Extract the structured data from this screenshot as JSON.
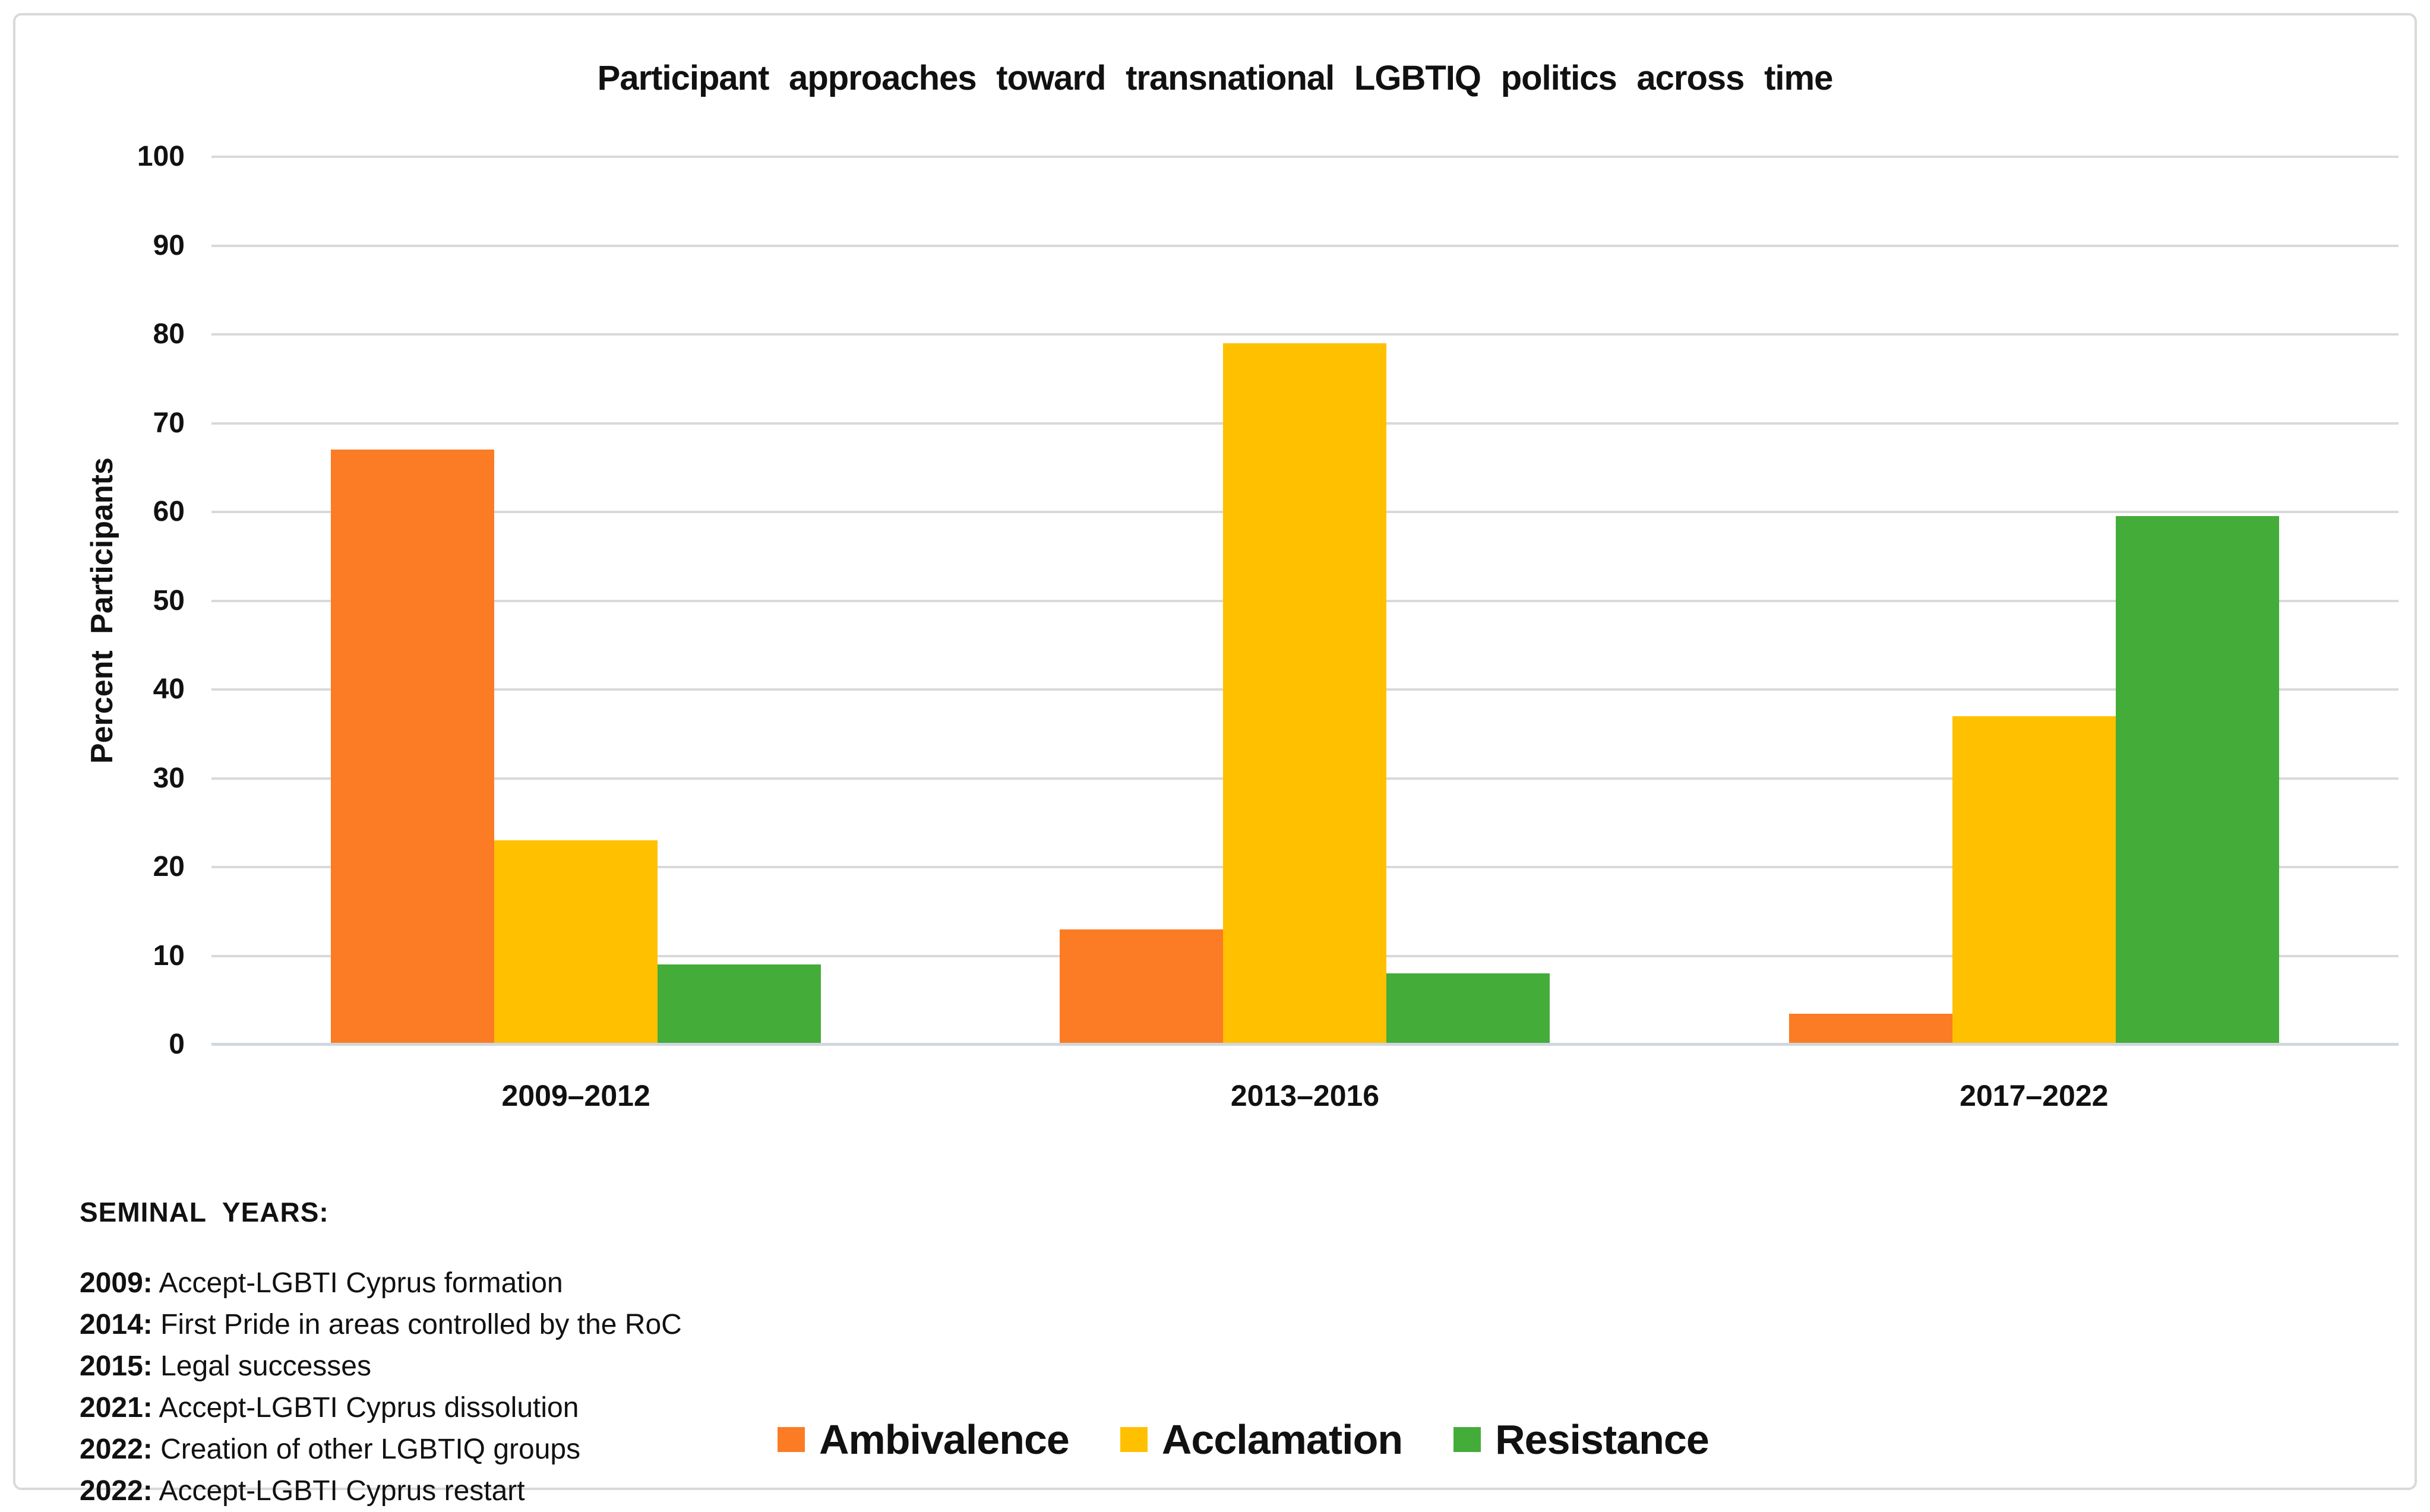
{
  "chart_data": {
    "type": "bar",
    "title": "Participant approaches toward transnational LGBTIQ politics across time",
    "xlabel": "",
    "ylabel": "Percent Participants",
    "ylim": [
      0,
      100
    ],
    "yticks": [
      0,
      10,
      20,
      30,
      40,
      50,
      60,
      70,
      80,
      90,
      100
    ],
    "grid": true,
    "legend_position": "bottom",
    "categories": [
      "2009–2012",
      "2013–2016",
      "2017–2022"
    ],
    "series": [
      {
        "name": "Ambivalence",
        "color": "#FB7C24",
        "values": [
          67,
          13,
          3.5
        ]
      },
      {
        "name": "Acclamation",
        "color": "#FFC000",
        "values": [
          23,
          79,
          37
        ]
      },
      {
        "name": "Resistance",
        "color": "#44AC39",
        "values": [
          9,
          8,
          59.5
        ]
      }
    ]
  },
  "notes": {
    "heading": "SEMINAL YEARS:",
    "items": [
      {
        "year": "2009:",
        "text": "Accept-LGBTI Cyprus formation"
      },
      {
        "year": "2014:",
        "text": "First Pride in areas controlled by the RoC"
      },
      {
        "year": "2015:",
        "text": "Legal successes"
      },
      {
        "year": "2021:",
        "text": "Accept-LGBTI Cyprus dissolution"
      },
      {
        "year": "2022:",
        "text": "Creation of other LGBTIQ groups"
      },
      {
        "year": "2022:",
        "text": "Accept-LGBTI Cyprus restart"
      }
    ]
  },
  "colors": {
    "grid": "#D9D9D9",
    "axis": "#D0D7DE",
    "border": "#D9D9D9",
    "text": "#111111",
    "background": "#FFFFFF"
  }
}
